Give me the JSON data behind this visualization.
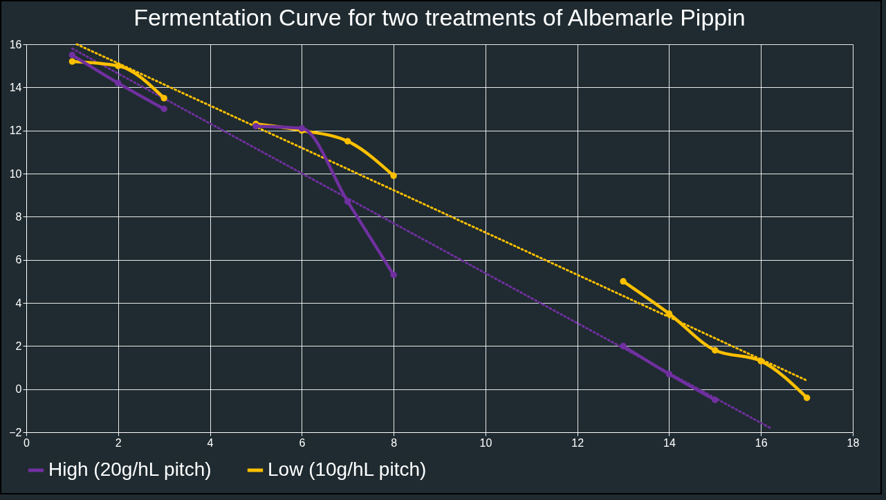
{
  "chart_data": {
    "type": "line",
    "title": "Fermentation Curve for two treatments of Albemarle Pippin",
    "x": [
      1,
      2,
      3,
      4,
      5,
      6,
      7,
      8,
      9,
      10,
      11,
      12,
      13,
      14,
      15,
      16,
      17
    ],
    "series": [
      {
        "name": "High (20g/hL pitch)",
        "color": "#7030a0",
        "marker": "circle",
        "values": [
          15.5,
          14.2,
          13.0,
          null,
          12.2,
          12.1,
          8.7,
          5.3,
          null,
          null,
          null,
          null,
          2.0,
          0.7,
          -0.5,
          null,
          null
        ]
      },
      {
        "name": "Low (10g/hL pitch)",
        "color": "#ffc000",
        "marker": "circle",
        "values": [
          15.2,
          15.0,
          13.5,
          null,
          12.3,
          12.0,
          11.5,
          9.9,
          null,
          null,
          null,
          null,
          5.0,
          3.5,
          1.8,
          1.3,
          -0.4
        ]
      },
      {
        "type": "line",
        "color": "#7030a0",
        "line_style": "dotted",
        "marker": "none",
        "x": [
          1,
          16.2
        ],
        "values": [
          15.8,
          -1.8
        ]
      },
      {
        "type": "line",
        "color": "#ffc000",
        "line_style": "dotted",
        "marker": "none",
        "x": [
          1.1,
          17
        ],
        "values": [
          16.0,
          0.4
        ]
      }
    ],
    "xlim": [
      0,
      18
    ],
    "xticks": [
      0,
      2,
      4,
      6,
      8,
      10,
      12,
      14,
      16,
      18
    ],
    "ylim": [
      -2,
      16
    ],
    "yticks": [
      -2,
      0,
      2,
      4,
      6,
      8,
      10,
      12,
      14,
      16
    ],
    "grid": true,
    "legend": "bottom",
    "line_style": "solid"
  }
}
